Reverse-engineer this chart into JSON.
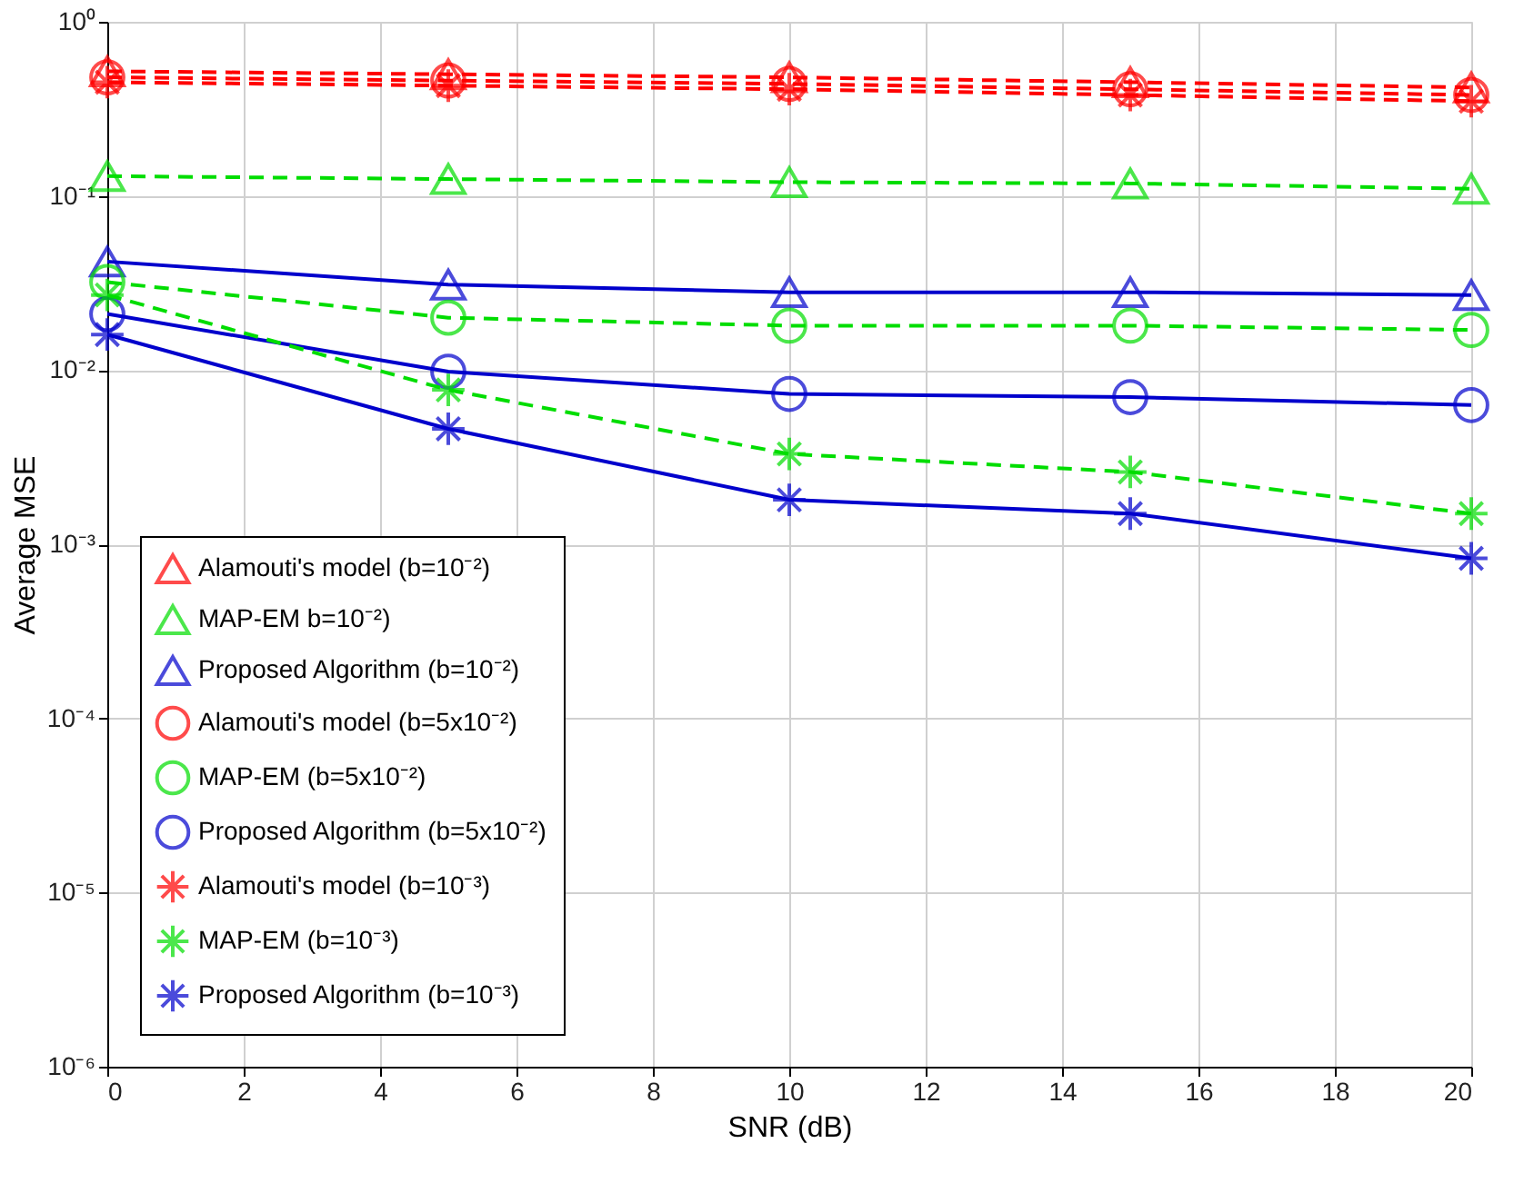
{
  "chart_data": {
    "type": "line",
    "xlabel": "SNR (dB)",
    "ylabel": "Average MSE",
    "log": "y",
    "grid": true,
    "legend": "bottom left",
    "x": [
      0,
      5,
      10,
      15,
      20
    ],
    "xlim": [
      0,
      20
    ],
    "xticks": [
      0,
      2,
      4,
      6,
      8,
      10,
      12,
      14,
      16,
      18,
      20
    ],
    "ylim": [
      1e-06,
      1
    ],
    "yticks": [
      {
        "value": 1e-06,
        "label": "10⁻⁶"
      },
      {
        "value": 1e-05,
        "label": "10⁻⁵"
      },
      {
        "value": 0.0001,
        "label": "10⁻⁴"
      },
      {
        "value": 0.001,
        "label": "10⁻³"
      },
      {
        "value": 0.01,
        "label": "10⁻²"
      },
      {
        "value": 0.1,
        "label": "10⁻¹"
      },
      {
        "value": 1,
        "label": "10⁰"
      }
    ],
    "series": [
      {
        "name": "Alamouti's model (b=10⁻²)",
        "color": "#ff0000",
        "marker": "triangle",
        "line_style": "dashed",
        "values": [
          0.52,
          0.5,
          0.48,
          0.45,
          0.42
        ]
      },
      {
        "name": "MAP-EM b=10⁻²)",
        "color": "#00dd00",
        "marker": "triangle",
        "line_style": "dashed",
        "values": [
          0.13,
          0.125,
          0.12,
          0.118,
          0.11
        ]
      },
      {
        "name": "Proposed Algorithm (b=10⁻²)",
        "color": "#0000cc",
        "marker": "triangle",
        "line_style": "solid",
        "values": [
          0.042,
          0.031,
          0.028,
          0.028,
          0.027
        ]
      },
      {
        "name": "Alamouti's model (b=5x10⁻²)",
        "color": "#ff0000",
        "marker": "circle",
        "line_style": "dashed",
        "values": [
          0.48,
          0.46,
          0.44,
          0.41,
          0.38
        ]
      },
      {
        "name": "MAP-EM (b=5x10⁻²)",
        "color": "#00dd00",
        "marker": "circle",
        "line_style": "dashed",
        "values": [
          0.032,
          0.02,
          0.018,
          0.018,
          0.017
        ]
      },
      {
        "name": "Proposed Algorithm (b=5x10⁻²)",
        "color": "#0000cc",
        "marker": "circle",
        "line_style": "solid",
        "values": [
          0.021,
          0.0098,
          0.0073,
          0.007,
          0.0063
        ]
      },
      {
        "name": "Alamouti's model (b=10⁻³)",
        "color": "#ff0000",
        "marker": "cross",
        "line_style": "dashed",
        "values": [
          0.45,
          0.43,
          0.41,
          0.38,
          0.35
        ]
      },
      {
        "name": "MAP-EM (b=10⁻³)",
        "color": "#00dd00",
        "marker": "cross",
        "line_style": "dashed",
        "values": [
          0.027,
          0.0077,
          0.0033,
          0.0026,
          0.0015
        ]
      },
      {
        "name": "Proposed Algorithm (b=10⁻³)",
        "color": "#0000cc",
        "marker": "cross",
        "line_style": "solid",
        "values": [
          0.016,
          0.0046,
          0.0018,
          0.0015,
          0.00083
        ]
      }
    ]
  }
}
